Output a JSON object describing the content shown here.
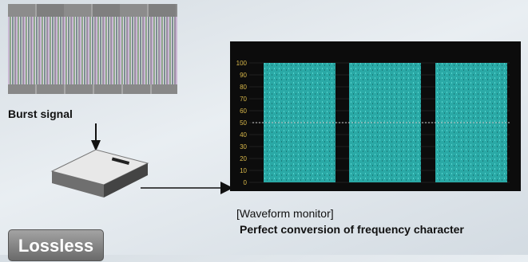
{
  "burst": {
    "caption": "Burst signal"
  },
  "waveform": {
    "scale": [
      "100",
      "90",
      "80",
      "70",
      "60",
      "50",
      "40",
      "30",
      "20",
      "10",
      "0"
    ],
    "title": "[Waveform monitor]",
    "caption": "Perfect conversion of frequency character"
  },
  "badge": {
    "label": "Lossless"
  }
}
